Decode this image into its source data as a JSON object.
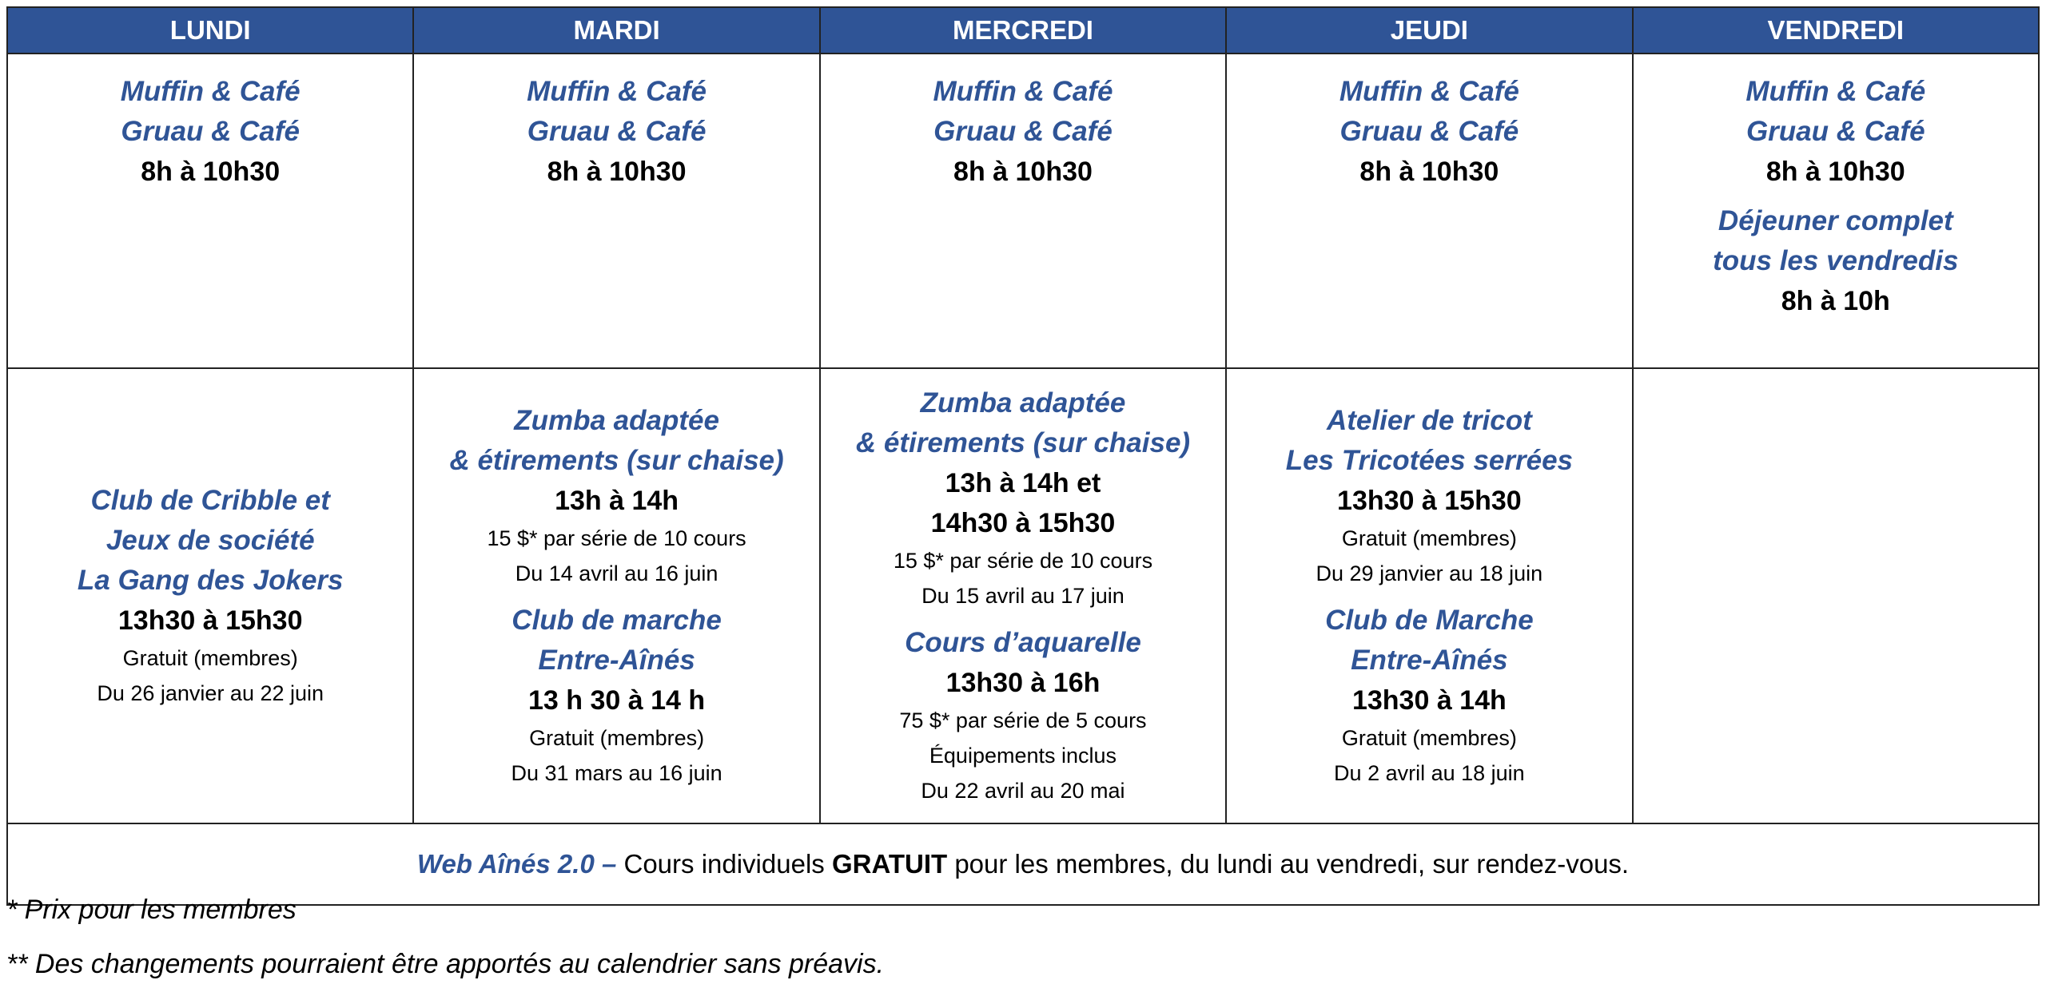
{
  "days": [
    "LUNDI",
    "MARDI",
    "MERCREDI",
    "JEUDI",
    "VENDREDI"
  ],
  "morning": {
    "title1": "Muffin & Café",
    "title2": "Gruau & Café",
    "time": "8h à 10h30",
    "friday_extra": {
      "title1": "Déjeuner complet",
      "title2": "tous les vendredis",
      "time": "8h à 10h"
    }
  },
  "afternoon": {
    "lundi": [
      {
        "titles": [
          "Club de Cribble et",
          "Jeux de société",
          "La Gang des Jokers"
        ],
        "times": [
          "13h30 à 15h30"
        ],
        "details": [
          "Gratuit (membres)",
          "Du 26 janvier au 22 juin"
        ]
      }
    ],
    "mardi": [
      {
        "titles": [
          "Zumba adaptée",
          "& étirements (sur chaise)"
        ],
        "times": [
          "13h à 14h"
        ],
        "details": [
          "15 $* par série de 10 cours",
          "Du 14 avril au 16 juin"
        ]
      },
      {
        "titles": [
          "Club de marche",
          "Entre-Aînés"
        ],
        "times": [
          "13 h 30 à 14 h"
        ],
        "details": [
          "Gratuit (membres)",
          "Du 31 mars au 16 juin"
        ]
      }
    ],
    "mercredi": [
      {
        "titles": [
          "Zumba adaptée",
          "& étirements (sur chaise)"
        ],
        "times": [
          "13h à 14h et",
          "14h30 à 15h30"
        ],
        "details": [
          "15 $* par série de 10 cours",
          "Du 15 avril au 17 juin"
        ]
      },
      {
        "titles": [
          "Cours d’aquarelle"
        ],
        "times": [
          "13h30 à 16h"
        ],
        "details": [
          "75 $* par série de 5 cours",
          "Équipements inclus",
          "Du 22 avril au 20 mai"
        ]
      }
    ],
    "jeudi": [
      {
        "titles": [
          "Atelier de tricot",
          "Les Tricotées serrées"
        ],
        "times": [
          "13h30 à 15h30"
        ],
        "details": [
          "Gratuit (membres)",
          "Du 29 janvier au 18 juin"
        ]
      },
      {
        "titles": [
          "Club de Marche",
          "Entre-Aînés"
        ],
        "times": [
          "13h30 à 14h"
        ],
        "details": [
          "Gratuit (membres)",
          "Du 2 avril au 18 juin"
        ]
      }
    ]
  },
  "footer_row": {
    "title": "Web Aînés 2.0 –",
    "text1": " Cours individuels ",
    "bold": "GRATUIT",
    "text2": " pour les membres, du lundi au vendredi, sur rendez-vous."
  },
  "notes": [
    "* Prix pour les membres",
    "** Des changements pourraient être apportés au calendrier sans préavis."
  ],
  "colors": {
    "header_bg": "#2F5496",
    "title_text": "#2F5496"
  }
}
